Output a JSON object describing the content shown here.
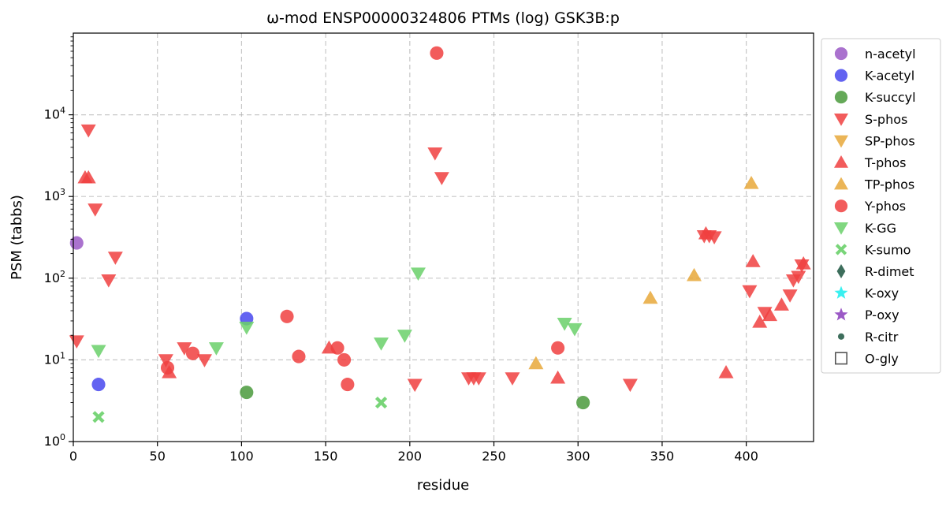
{
  "chart_data": {
    "type": "scatter",
    "title": "ω-mod ENSP00000324806 PTMs (log) GSK3B:p",
    "xlabel": "residue",
    "ylabel": "PSM (tabbs)",
    "xlim": [
      0,
      440
    ],
    "ylim": [
      1,
      100000
    ],
    "yscale": "log",
    "grid": true,
    "legend_position": "right",
    "x_ticks": [
      0,
      50,
      100,
      150,
      200,
      250,
      300,
      350,
      400
    ],
    "y_ticks": [
      {
        "base": "10",
        "exp": "0",
        "value": 1
      },
      {
        "base": "10",
        "exp": "1",
        "value": 10
      },
      {
        "base": "10",
        "exp": "2",
        "value": 100
      },
      {
        "base": "10",
        "exp": "3",
        "value": 1000
      },
      {
        "base": "10",
        "exp": "4",
        "value": 10000
      }
    ],
    "series": [
      {
        "name": "n-acetyl",
        "color": "#9b59c6",
        "marker": "circle",
        "points": [
          [
            2,
            270
          ]
        ]
      },
      {
        "name": "K-acetyl",
        "color": "#4848ee",
        "marker": "circle",
        "points": [
          [
            15,
            5
          ],
          [
            103,
            32
          ]
        ]
      },
      {
        "name": "K-succyl",
        "color": "#4a9a3c",
        "marker": "circle",
        "points": [
          [
            103,
            4
          ],
          [
            303,
            3
          ]
        ]
      },
      {
        "name": "S-phos",
        "color": "#f04040",
        "marker": "triangle-down",
        "points": [
          [
            2,
            17
          ],
          [
            9,
            6500
          ],
          [
            13,
            700
          ],
          [
            21,
            95
          ],
          [
            25,
            180
          ],
          [
            55,
            10
          ],
          [
            66,
            14
          ],
          [
            78,
            10
          ],
          [
            203,
            5
          ],
          [
            215,
            3400
          ],
          [
            219,
            1700
          ],
          [
            235,
            6
          ],
          [
            238,
            6
          ],
          [
            241,
            6
          ],
          [
            261,
            6
          ],
          [
            331,
            5
          ],
          [
            375,
            330
          ],
          [
            378,
            330
          ],
          [
            381,
            320
          ],
          [
            402,
            70
          ],
          [
            411,
            38
          ],
          [
            426,
            62
          ],
          [
            428,
            95
          ],
          [
            431,
            105
          ],
          [
            433,
            145
          ]
        ]
      },
      {
        "name": "SP-phos",
        "color": "#e8a83a",
        "marker": "triangle-down",
        "points": []
      },
      {
        "name": "T-phos",
        "color": "#f04040",
        "marker": "triangle-up",
        "points": [
          [
            7,
            1700
          ],
          [
            9,
            1700
          ],
          [
            57,
            7
          ],
          [
            152,
            14
          ],
          [
            288,
            6
          ],
          [
            376,
            350
          ],
          [
            388,
            7
          ],
          [
            404,
            160
          ],
          [
            408,
            29
          ],
          [
            414,
            35
          ],
          [
            421,
            47
          ],
          [
            434,
            150
          ]
        ]
      },
      {
        "name": "TP-phos",
        "color": "#e8a83a",
        "marker": "triangle-up",
        "points": [
          [
            275,
            9
          ],
          [
            343,
            57
          ],
          [
            369,
            108
          ],
          [
            403,
            1450
          ]
        ]
      },
      {
        "name": "Y-phos",
        "color": "#f04040",
        "marker": "circle",
        "points": [
          [
            56,
            8
          ],
          [
            71,
            12
          ],
          [
            127,
            34
          ],
          [
            134,
            11
          ],
          [
            157,
            14
          ],
          [
            161,
            10
          ],
          [
            163,
            5
          ],
          [
            216,
            57000
          ],
          [
            288,
            14
          ]
        ]
      },
      {
        "name": "K-GG",
        "color": "#6ad06a",
        "marker": "triangle-down",
        "points": [
          [
            15,
            13
          ],
          [
            85,
            14
          ],
          [
            103,
            25
          ],
          [
            183,
            16
          ],
          [
            197,
            20
          ],
          [
            205,
            115
          ],
          [
            292,
            28
          ],
          [
            298,
            24
          ]
        ]
      },
      {
        "name": "K-sumo",
        "color": "#6ad06a",
        "marker": "x",
        "points": [
          [
            15,
            2
          ],
          [
            183,
            3
          ]
        ]
      },
      {
        "name": "R-dimet",
        "color": "#3d6e5c",
        "marker": "diamond",
        "points": []
      },
      {
        "name": "K-oxy",
        "color": "#39f0f0",
        "marker": "star",
        "points": []
      },
      {
        "name": "P-oxy",
        "color": "#9b59c6",
        "marker": "star",
        "points": []
      },
      {
        "name": "R-citr",
        "color": "#3d6e5c",
        "marker": "small-circle",
        "points": []
      },
      {
        "name": "O-gly",
        "color": "#555555",
        "marker": "square-open",
        "points": []
      }
    ]
  }
}
